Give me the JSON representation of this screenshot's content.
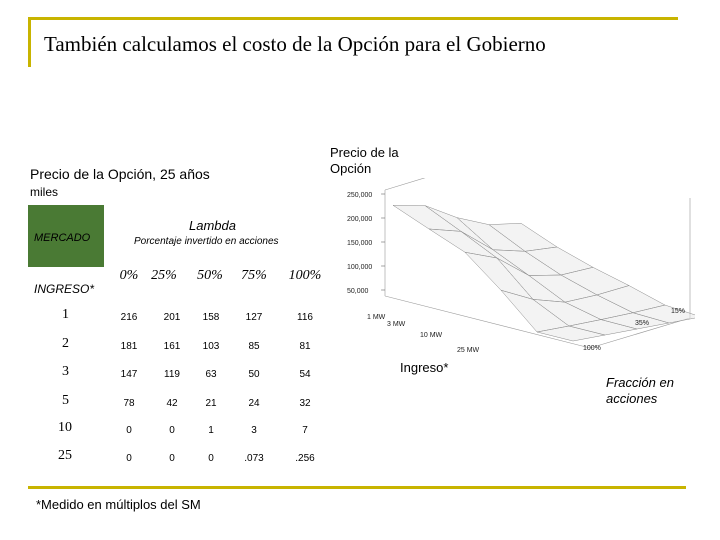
{
  "slide": {
    "title": "También calculamos el costo de la Opción para el Gobierno",
    "subtitle": "Precio de la Opción, 25 años",
    "units": "miles",
    "mercado_label": "MERCADO",
    "ingreso_label": "INGRESO*",
    "lambda_label": "Lambda",
    "porcentaje_label": "Porcentaje invertido en acciones",
    "footnote": "*Medido en múltiplos del SM"
  },
  "table": {
    "columns": [
      "0%",
      "25%",
      "50%",
      "75%",
      "100%"
    ],
    "rows": [
      {
        "ingreso": "1",
        "values": [
          "216",
          "201",
          "158",
          "127",
          "116"
        ]
      },
      {
        "ingreso": "2",
        "values": [
          "181",
          "161",
          "103",
          "85",
          "81"
        ]
      },
      {
        "ingreso": "3",
        "values": [
          "147",
          "119",
          "63",
          "50",
          "54"
        ]
      },
      {
        "ingreso": "5",
        "values": [
          "78",
          "42",
          "21",
          "24",
          "32"
        ]
      },
      {
        "ingreso": "10",
        "values": [
          "0",
          "0",
          "1",
          "3",
          "7"
        ]
      },
      {
        "ingreso": "25",
        "values": [
          "0",
          "0",
          "0",
          ".073",
          ".256"
        ]
      }
    ]
  },
  "plot": {
    "title_line1": "Precio de la",
    "title_line2": "Opción",
    "y_ticks": [
      "250,000",
      "200,000",
      "150,000",
      "100,000",
      "50,000"
    ],
    "x_ticks": [
      "1 MW",
      "3 MW",
      "10 MW",
      "25 MW"
    ],
    "z_ticks": [
      "15%",
      "35%",
      "100%"
    ],
    "ingreso_axis": "Ingreso*",
    "fraccion_line1": "Fracción en",
    "fraccion_line2": "acciones"
  },
  "colors": {
    "accent": "#c8b400",
    "mercado_fill": "#4a7a34"
  }
}
